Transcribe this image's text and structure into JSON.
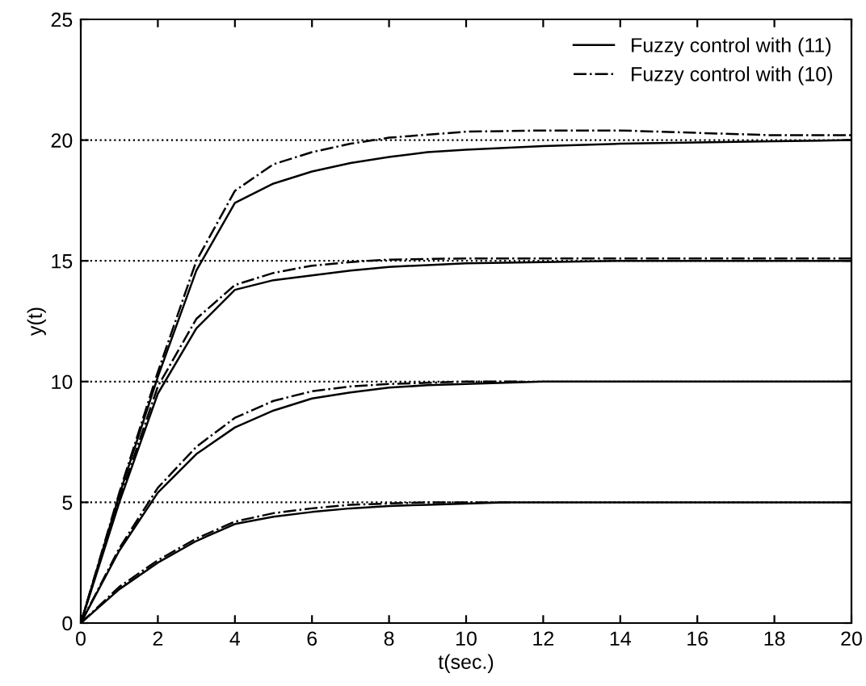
{
  "chart_data": {
    "type": "line",
    "xlabel": "t(sec.)",
    "ylabel": "y(t)",
    "xlim": [
      0,
      20
    ],
    "ylim": [
      0,
      25
    ],
    "xticks": [
      0,
      2,
      4,
      6,
      8,
      10,
      12,
      14,
      16,
      18,
      20
    ],
    "yticks": [
      0,
      5,
      10,
      15,
      20,
      25
    ],
    "grid": false,
    "legend": "top right",
    "series": [
      {
        "name": "Fuzzy control with (11)",
        "color": "#000000",
        "line_style": "solid",
        "x": [
          0,
          1,
          2,
          3,
          4,
          5,
          6,
          7,
          8,
          9,
          10,
          12,
          14,
          16,
          18,
          20
        ],
        "values": [
          0,
          5.3,
          10.2,
          14.6,
          17.4,
          18.2,
          18.7,
          19.05,
          19.3,
          19.5,
          19.6,
          19.75,
          19.85,
          19.9,
          19.95,
          20
        ]
      },
      {
        "name": "Fuzzy control with (10)",
        "color": "#000000",
        "line_style": "dashdot",
        "x": [
          0,
          1,
          2,
          3,
          4,
          5,
          6,
          7,
          8,
          10,
          12,
          14,
          16,
          18,
          20
        ],
        "values": [
          0,
          5.4,
          10.4,
          15.0,
          17.9,
          19.0,
          19.5,
          19.85,
          20.1,
          20.35,
          20.4,
          20.4,
          20.3,
          20.2,
          20.2
        ]
      },
      {
        "color": "#000000",
        "line_style": "solid",
        "x": [
          0,
          1,
          2,
          3,
          4,
          5,
          6,
          7,
          8,
          10,
          12,
          14,
          16,
          18,
          20
        ],
        "values": [
          0,
          5.0,
          9.5,
          12.2,
          13.8,
          14.2,
          14.4,
          14.6,
          14.75,
          14.9,
          14.95,
          15,
          15,
          15,
          15
        ]
      },
      {
        "color": "#000000",
        "line_style": "dashdot",
        "x": [
          0,
          1,
          2,
          3,
          4,
          5,
          6,
          7,
          8,
          10,
          12,
          14,
          16,
          18,
          20
        ],
        "values": [
          0,
          5.1,
          9.8,
          12.6,
          14.0,
          14.5,
          14.8,
          14.95,
          15.05,
          15.1,
          15.1,
          15.1,
          15.1,
          15.1,
          15.1
        ]
      },
      {
        "color": "#000000",
        "line_style": "solid",
        "x": [
          0,
          1,
          2,
          3,
          4,
          5,
          6,
          7,
          8,
          9,
          10,
          11,
          12,
          14,
          16,
          18,
          20
        ],
        "values": [
          0,
          3.0,
          5.4,
          7.0,
          8.1,
          8.8,
          9.3,
          9.55,
          9.75,
          9.85,
          9.9,
          9.95,
          10,
          10,
          10,
          10,
          10
        ]
      },
      {
        "color": "#000000",
        "line_style": "dashdot",
        "x": [
          0,
          1,
          2,
          3,
          4,
          5,
          6,
          7,
          8,
          9,
          10,
          11.5
        ],
        "values": [
          0,
          3.1,
          5.6,
          7.3,
          8.5,
          9.2,
          9.6,
          9.8,
          9.9,
          9.95,
          10,
          10
        ]
      },
      {
        "color": "#000000",
        "line_style": "solid",
        "x": [
          0,
          1,
          2,
          3,
          4,
          5,
          6,
          7,
          8,
          9,
          10,
          11,
          12,
          14,
          16,
          18,
          20
        ],
        "values": [
          0,
          1.4,
          2.5,
          3.4,
          4.1,
          4.4,
          4.6,
          4.75,
          4.85,
          4.9,
          4.95,
          5,
          5,
          5,
          5,
          5,
          5
        ]
      },
      {
        "color": "#000000",
        "line_style": "dashdot",
        "x": [
          0,
          1,
          2,
          3,
          4,
          5,
          6,
          7,
          8,
          9,
          10,
          11.2
        ],
        "values": [
          0,
          1.5,
          2.6,
          3.5,
          4.2,
          4.55,
          4.75,
          4.9,
          4.95,
          5,
          5,
          5
        ]
      }
    ],
    "ref_lines": [
      {
        "axis": "y",
        "value": 5,
        "line_style": "dotted",
        "color": "#000000"
      },
      {
        "axis": "y",
        "value": 10,
        "line_style": "dotted",
        "color": "#000000"
      },
      {
        "axis": "y",
        "value": 15,
        "line_style": "dotted",
        "color": "#000000"
      },
      {
        "axis": "y",
        "value": 20,
        "line_style": "dotted",
        "color": "#000000"
      }
    ]
  }
}
